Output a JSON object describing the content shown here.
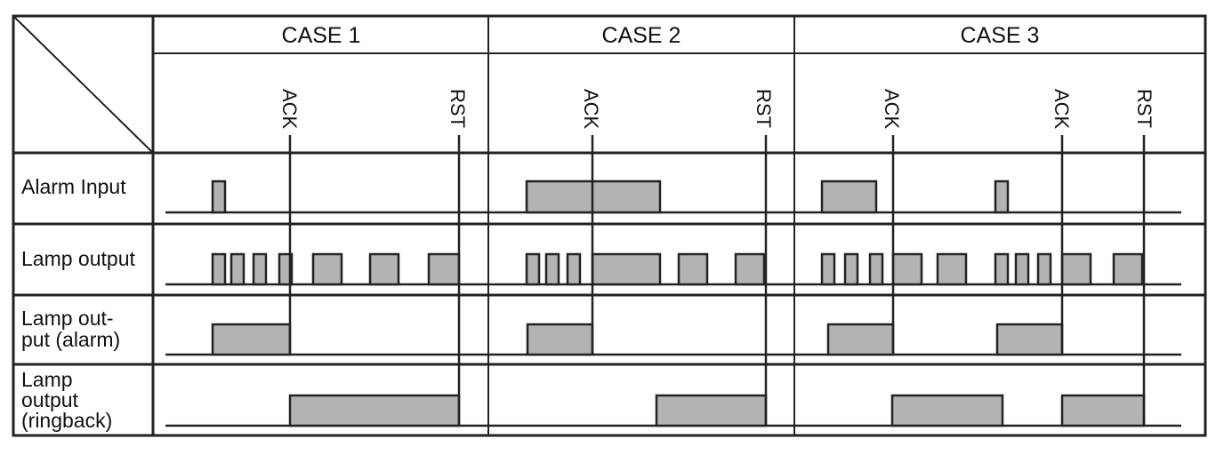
{
  "cases": [
    "CASE 1",
    "CASE 2",
    "CASE 3"
  ],
  "rows": [
    {
      "key": "alarm_input",
      "label_lines": [
        "Alarm Input"
      ]
    },
    {
      "key": "lamp_output",
      "label_lines": [
        "Lamp output"
      ]
    },
    {
      "key": "lamp_output_alarm",
      "label_lines": [
        "Lamp out-",
        "put (alarm)"
      ]
    },
    {
      "key": "lamp_output_ringback",
      "label_lines": [
        "Lamp",
        "output",
        "(ringback)"
      ]
    }
  ],
  "events": [
    {
      "case": 0,
      "label": "ACK"
    },
    {
      "case": 0,
      "label": "RST"
    },
    {
      "case": 1,
      "label": "ACK"
    },
    {
      "case": 1,
      "label": "RST"
    },
    {
      "case": 2,
      "label": "ACK"
    },
    {
      "case": 2,
      "label": "ACK"
    },
    {
      "case": 2,
      "label": "RST"
    }
  ],
  "colors": {
    "pulse_fill": "#b3b3b3",
    "line": "#222222"
  }
}
